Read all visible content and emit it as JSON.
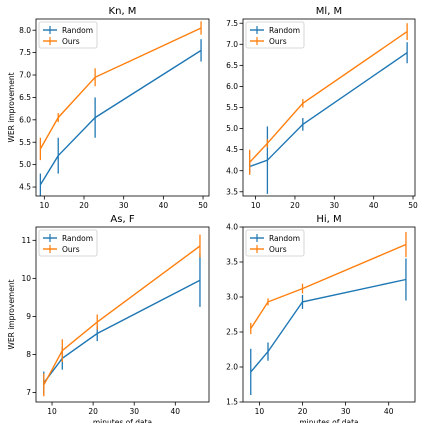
{
  "chart_data": [
    {
      "type": "line",
      "title": "Kn, M",
      "xlabel": "",
      "ylabel": "WER improvement",
      "xlim": [
        7.9,
        51.5
      ],
      "ylim": [
        4.3,
        8.25
      ],
      "xticks": [
        10,
        20,
        30,
        40,
        50
      ],
      "yticks": [
        4.5,
        5.0,
        5.5,
        6.0,
        6.5,
        7.0,
        7.5,
        8.0
      ],
      "ytick_labels": [
        "4.5",
        "5.0",
        "5.5",
        "6.0",
        "6.5",
        "7.0",
        "7.5",
        "8.0"
      ],
      "grid": false,
      "legend": "top-left",
      "series": [
        {
          "name": "Random",
          "color": "#1f77b4",
          "x": [
            9.0,
            13.5,
            22.8,
            49.5
          ],
          "y": [
            4.55,
            5.2,
            6.05,
            7.55
          ],
          "err": [
            0.25,
            0.4,
            0.45,
            0.25
          ]
        },
        {
          "name": "Ours",
          "color": "#ff7f0e",
          "x": [
            9.0,
            13.5,
            22.8,
            49.5
          ],
          "y": [
            5.35,
            6.05,
            6.95,
            8.05
          ],
          "err": [
            0.25,
            0.1,
            0.2,
            0.15
          ]
        }
      ]
    },
    {
      "type": "line",
      "title": "Ml, M",
      "xlabel": "",
      "ylabel": "",
      "xlim": [
        6.8,
        50.5
      ],
      "ylim": [
        3.4,
        7.6
      ],
      "xticks": [
        10,
        20,
        30,
        40,
        50
      ],
      "yticks": [
        3.5,
        4.0,
        4.5,
        5.0,
        5.5,
        6.0,
        6.5,
        7.0,
        7.5
      ],
      "ytick_labels": [
        "3.5",
        "4.0",
        "4.5",
        "5.0",
        "5.5",
        "6.0",
        "6.5",
        "7.0",
        "7.5"
      ],
      "grid": false,
      "legend": "top-left",
      "series": [
        {
          "name": "Random",
          "color": "#1f77b4",
          "x": [
            8.5,
            13.0,
            22.0,
            48.5
          ],
          "y": [
            4.1,
            4.25,
            5.1,
            6.8
          ],
          "err": [
            0.15,
            0.8,
            0.15,
            0.25
          ]
        },
        {
          "name": "Ours",
          "color": "#ff7f0e",
          "x": [
            8.5,
            13.0,
            22.0,
            48.5
          ],
          "y": [
            4.2,
            4.65,
            5.6,
            7.3
          ],
          "err": [
            0.3,
            0.1,
            0.1,
            0.2
          ]
        }
      ]
    },
    {
      "type": "line",
      "title": "As, F",
      "xlabel": "minutes of data",
      "ylabel": "WER improvement",
      "xlim": [
        6.1,
        48.2
      ],
      "ylim": [
        6.75,
        11.35
      ],
      "xticks": [
        10,
        20,
        30,
        40
      ],
      "yticks": [
        7,
        8,
        9,
        10,
        11
      ],
      "ytick_labels": [
        "7",
        "8",
        "9",
        "10",
        "11"
      ],
      "grid": false,
      "legend": "top-left",
      "series": [
        {
          "name": "Random",
          "color": "#1f77b4",
          "x": [
            8.0,
            12.5,
            21.0,
            46.0
          ],
          "y": [
            7.25,
            7.9,
            8.55,
            9.95
          ],
          "err": [
            0.3,
            0.3,
            0.2,
            0.7
          ]
        },
        {
          "name": "Ours",
          "color": "#ff7f0e",
          "x": [
            8.0,
            12.5,
            21.0,
            46.0
          ],
          "y": [
            7.2,
            8.1,
            8.85,
            10.85
          ],
          "err": [
            0.3,
            0.3,
            0.2,
            0.3
          ]
        }
      ]
    },
    {
      "type": "line",
      "title": "Hi, M",
      "xlabel": "minutes of data",
      "ylabel": "",
      "xlim": [
        6.2,
        46.1
      ],
      "ylim": [
        1.5,
        4.0
      ],
      "xticks": [
        10,
        20,
        30,
        40
      ],
      "yticks": [
        1.5,
        2.0,
        2.5,
        3.0,
        3.5,
        4.0
      ],
      "ytick_labels": [
        "1.5",
        "2.0",
        "2.5",
        "3.0",
        "3.5",
        "4.0"
      ],
      "grid": false,
      "legend": "top-left",
      "series": [
        {
          "name": "Random",
          "color": "#1f77b4",
          "x": [
            8.0,
            12.0,
            20.0,
            44.0
          ],
          "y": [
            1.93,
            2.22,
            2.93,
            3.25
          ],
          "err": [
            0.33,
            0.13,
            0.1,
            0.3
          ]
        },
        {
          "name": "Ours",
          "color": "#ff7f0e",
          "x": [
            8.0,
            12.0,
            20.0,
            44.0
          ],
          "y": [
            2.55,
            2.93,
            3.12,
            3.75
          ],
          "err": [
            0.08,
            0.05,
            0.07,
            0.18
          ]
        }
      ]
    }
  ]
}
